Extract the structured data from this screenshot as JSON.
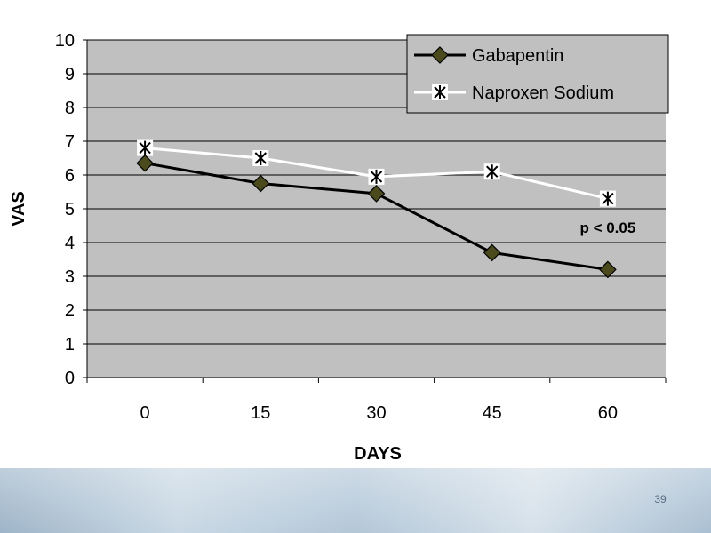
{
  "slide": {
    "page_number": "39"
  },
  "chart_data": {
    "type": "line",
    "title": "",
    "xlabel": "DAYS",
    "ylabel": "VAS",
    "categories": [
      "0",
      "15",
      "30",
      "45",
      "60"
    ],
    "ylim": [
      0,
      10
    ],
    "yticks": [
      "0",
      "1",
      "2",
      "3",
      "4",
      "5",
      "6",
      "7",
      "8",
      "9",
      "10"
    ],
    "grid": true,
    "legend_position": "top-right",
    "plot_background": "#c0c0c0",
    "series": [
      {
        "name": "Gabapentin",
        "values": [
          6.35,
          5.75,
          5.45,
          3.7,
          3.2
        ],
        "color": "#000000",
        "marker": "diamond",
        "marker_color": "#4a4a1c"
      },
      {
        "name": "Naproxen Sodium",
        "values": [
          6.8,
          6.5,
          5.95,
          6.1,
          5.3
        ],
        "color": "#ffffff",
        "marker": "star"
      }
    ],
    "annotations": [
      {
        "text": "p < 0.05",
        "x": "60",
        "y": 4.45
      }
    ]
  }
}
